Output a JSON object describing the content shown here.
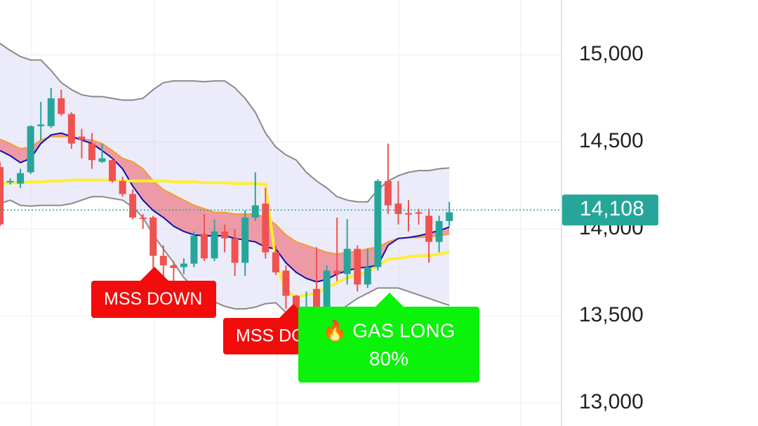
{
  "chart_data": {
    "type": "candlestick",
    "ylim": [
      12867,
      15315
    ],
    "yticks": [
      {
        "value": 13000,
        "label": "13,000"
      },
      {
        "value": 13500,
        "label": "13,500"
      },
      {
        "value": 14000,
        "label": "14,000"
      },
      {
        "value": 14500,
        "label": "14,500"
      },
      {
        "value": 15000,
        "label": "15,000"
      }
    ],
    "grid": true,
    "up_color": "#26a69a",
    "down_color": "#ef5350",
    "open": [
      14355,
      14270,
      14260,
      14325,
      14590,
      14590,
      14750,
      14660,
      14530,
      14490,
      14385,
      14395,
      14275,
      14200,
      14065,
      14065,
      13845,
      13790,
      13780,
      13800,
      13970,
      13830,
      13985,
      13945,
      13805,
      14065,
      14145,
      13865,
      13760,
      13615,
      13345,
      13655,
      13515,
      13760,
      13740,
      13885,
      13680,
      13780,
      14275,
      14145,
      14090,
      14095,
      14075,
      13925,
      14045
    ],
    "high": [
      14385,
      14290,
      14345,
      14595,
      14730,
      14810,
      14800,
      14670,
      14575,
      14550,
      14490,
      14405,
      14300,
      14225,
      14085,
      14075,
      13905,
      13815,
      13830,
      13985,
      14085,
      14055,
      14025,
      14000,
      14105,
      14325,
      14235,
      13905,
      13790,
      13620,
      13640,
      13895,
      13790,
      14065,
      14055,
      13905,
      13885,
      14285,
      14490,
      14275,
      14165,
      14115,
      14115,
      14075,
      14155
    ],
    "low": [
      14015,
      14255,
      14235,
      14315,
      14510,
      14580,
      14650,
      14460,
      14405,
      14345,
      14380,
      14265,
      14185,
      14055,
      14000,
      13760,
      13720,
      13620,
      13740,
      13780,
      13815,
      13815,
      13865,
      13730,
      13730,
      14045,
      13830,
      13735,
      13540,
      13300,
      13330,
      13460,
      13280,
      13700,
      13680,
      13640,
      13660,
      13760,
      14085,
      14025,
      13985,
      14025,
      13805,
      13865,
      14015
    ],
    "close": [
      14025,
      14275,
      14320,
      14590,
      14600,
      14750,
      14660,
      14490,
      14510,
      14395,
      14405,
      14275,
      14200,
      14065,
      14060,
      13845,
      13790,
      13775,
      13800,
      13960,
      13830,
      13985,
      13945,
      13805,
      14065,
      14135,
      13865,
      13750,
      13615,
      13345,
      13540,
      13520,
      13760,
      13740,
      13885,
      13680,
      13780,
      14275,
      14135,
      14085,
      14085,
      14090,
      13925,
      14045,
      14095
    ],
    "band": {
      "line_color": "#8a8a8a",
      "fill": "rgba(210,210,245,0.45)",
      "upper": [
        15065,
        15025,
        14990,
        14970,
        14970,
        14910,
        14840,
        14800,
        14770,
        14760,
        14760,
        14750,
        14740,
        14740,
        14750,
        14800,
        14840,
        14850,
        14850,
        14850,
        14845,
        14850,
        14850,
        14810,
        14750,
        14670,
        14550,
        14470,
        14425,
        14395,
        14325,
        14275,
        14235,
        14185,
        14165,
        14155,
        14155,
        14225,
        14275,
        14305,
        14325,
        14335,
        14335,
        14345,
        14350
      ],
      "lower": [
        14145,
        14165,
        14135,
        14130,
        14135,
        14135,
        14135,
        14145,
        14165,
        14185,
        14185,
        14175,
        14165,
        14125,
        14065,
        13965,
        13885,
        13805,
        13720,
        13660,
        13620,
        13580,
        13555,
        13540,
        13540,
        13550,
        13570,
        13575,
        13520,
        13480,
        13460,
        13460,
        13480,
        13520,
        13560,
        13600,
        13630,
        13660,
        13660,
        13660,
        13640,
        13620,
        13600,
        13580,
        13560
      ]
    },
    "cloud": {
      "fill": "rgba(240,100,110,0.6)",
      "fast": {
        "color": "#0d0db0",
        "values": [
          14450,
          14420,
          14380,
          14405,
          14490,
          14540,
          14550,
          14530,
          14510,
          14490,
          14450,
          14405,
          14345,
          14245,
          14165,
          14105,
          14065,
          14015,
          13985,
          13965,
          13960,
          13960,
          13960,
          13945,
          13935,
          13925,
          13895,
          13885,
          13805,
          13750,
          13715,
          13695,
          13710,
          13740,
          13760,
          13775,
          13780,
          13790,
          13905,
          13945,
          13950,
          13960,
          13975,
          13990,
          14010
        ]
      },
      "slow": {
        "color": "#f0a030",
        "values": [
          14515,
          14490,
          14460,
          14470,
          14510,
          14530,
          14530,
          14530,
          14515,
          14510,
          14490,
          14450,
          14405,
          14385,
          14345,
          14275,
          14225,
          14195,
          14165,
          14135,
          14115,
          14095,
          14095,
          14085,
          14085,
          14085,
          14065,
          14025,
          13965,
          13925,
          13905,
          13885,
          13865,
          13855,
          13865,
          13870,
          13885,
          13895,
          13925,
          13945,
          13950,
          13950,
          13955,
          13960,
          13970
        ]
      }
    },
    "trail": {
      "color": "#ffee33",
      "values": [
        14260,
        14265,
        14265,
        14270,
        14270,
        14275,
        14275,
        14280,
        14280,
        14280,
        14280,
        14280,
        14275,
        14275,
        14275,
        14275,
        14275,
        14270,
        14270,
        14270,
        14265,
        14265,
        14265,
        14260,
        14260,
        14260,
        14255,
        13815,
        13640,
        13610,
        13620,
        13630,
        13660,
        13690,
        13720,
        13735,
        13750,
        13790,
        13825,
        13830,
        13840,
        13845,
        13845,
        13855,
        13865
      ]
    },
    "last_price": {
      "value": 14108,
      "label": "14,108",
      "color": "#26a69a"
    },
    "annotations": [
      {
        "text": "MSS DOWN",
        "color": "#f20c0c"
      },
      {
        "text": "MSS DOWN",
        "color": "#f20c0c"
      },
      {
        "text": "🔥 GAS LONG",
        "subtext": "80%",
        "color": "#0bf20b"
      }
    ]
  }
}
